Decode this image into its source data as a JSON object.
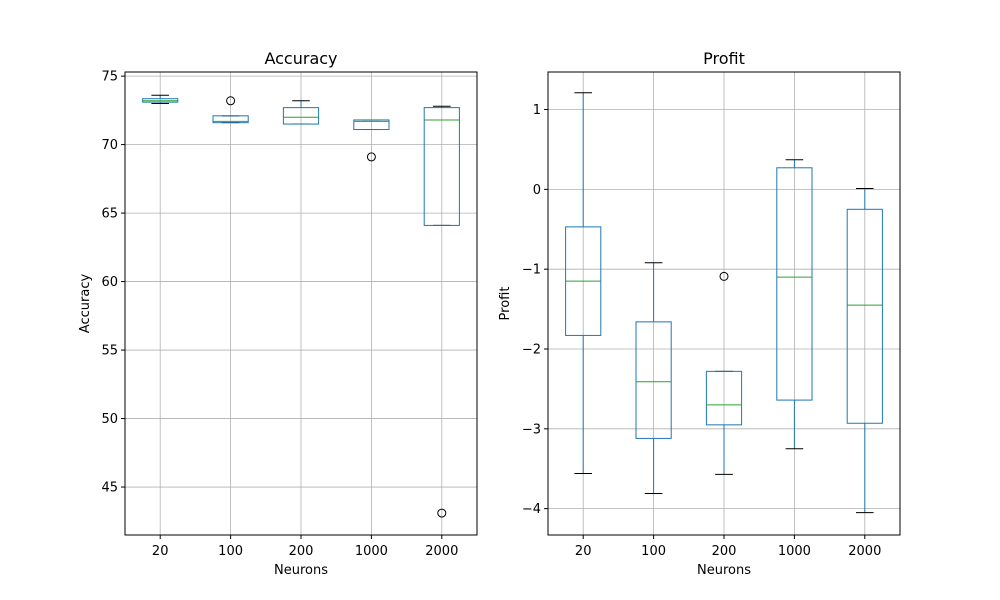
{
  "chart_data": [
    {
      "type": "boxplot",
      "title": "Accuracy",
      "xlabel": "Neurons",
      "ylabel": "Accuracy",
      "categories": [
        "20",
        "100",
        "200",
        "1000",
        "2000"
      ],
      "ylim": [
        41.5,
        75.3
      ],
      "yticks": [
        45,
        50,
        55,
        60,
        65,
        70,
        75
      ],
      "grid": true,
      "boxes": [
        {
          "whislo": 73.0,
          "q1": 73.1,
          "med": 73.2,
          "q3": 73.35,
          "whishi": 73.6,
          "fliers": []
        },
        {
          "whislo": 71.6,
          "q1": 71.6,
          "med": 71.7,
          "q3": 72.1,
          "whishi": 72.1,
          "fliers": [
            73.2
          ]
        },
        {
          "whislo": 71.5,
          "q1": 71.5,
          "med": 72.0,
          "q3": 72.7,
          "whishi": 73.2,
          "fliers": []
        },
        {
          "whislo": 71.1,
          "q1": 71.1,
          "med": 71.7,
          "q3": 71.8,
          "whishi": 71.8,
          "fliers": [
            69.1
          ]
        },
        {
          "whislo": 64.1,
          "q1": 64.1,
          "med": 71.8,
          "q3": 72.7,
          "whishi": 72.8,
          "fliers": [
            43.1
          ]
        }
      ]
    },
    {
      "type": "boxplot",
      "title": "Profit",
      "xlabel": "Neurons",
      "ylabel": "Profit",
      "categories": [
        "20",
        "100",
        "200",
        "1000",
        "2000"
      ],
      "ylim": [
        -4.33,
        1.47
      ],
      "yticks": [
        -4,
        -3,
        -2,
        -1,
        0,
        1
      ],
      "grid": true,
      "boxes": [
        {
          "whislo": -3.56,
          "q1": -1.83,
          "med": -1.15,
          "q3": -0.47,
          "whishi": 1.21,
          "fliers": []
        },
        {
          "whislo": -3.81,
          "q1": -3.12,
          "med": -2.41,
          "q3": -1.66,
          "whishi": -0.92,
          "fliers": []
        },
        {
          "whislo": -3.57,
          "q1": -2.95,
          "med": -2.7,
          "q3": -2.28,
          "whishi": -2.28,
          "fliers": [
            -1.09
          ]
        },
        {
          "whislo": -3.25,
          "q1": -2.64,
          "med": -1.1,
          "q3": 0.27,
          "whishi": 0.37,
          "fliers": []
        },
        {
          "whislo": -4.05,
          "q1": -2.93,
          "med": -1.45,
          "q3": -0.25,
          "whishi": 0.01,
          "fliers": []
        }
      ]
    }
  ],
  "colors": {
    "box": "#1f77b4",
    "median": "#2ca02c",
    "whisker": "#1f77b4",
    "cap": "#000000",
    "flier": "#000000",
    "grid": "#b0b0b0",
    "axes": "#000000"
  }
}
